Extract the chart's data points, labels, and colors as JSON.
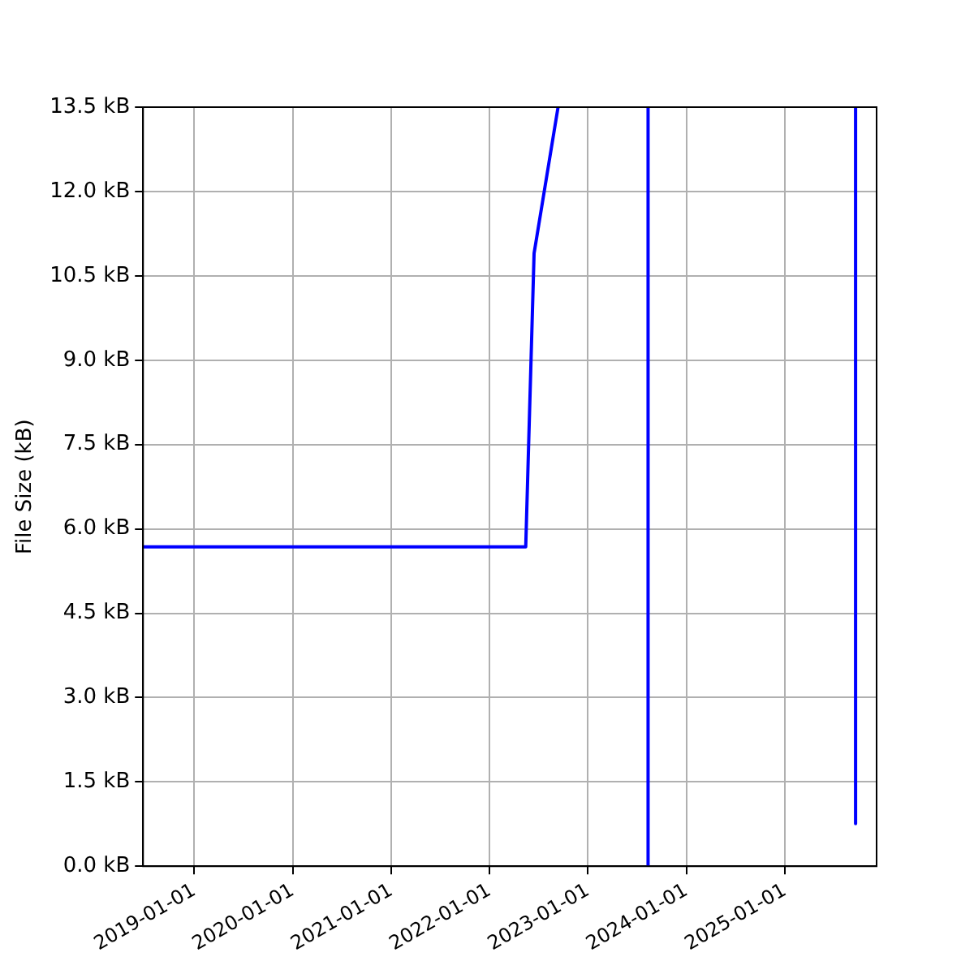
{
  "chart_data": {
    "type": "line",
    "ylabel": "File Size (kB)",
    "x": [
      "2018-06-25",
      "2022-05-15",
      "2022-06-15",
      "2022-09-12",
      "2023-01-01",
      "2023-08-12",
      "2023-08-12",
      "2024-09-01",
      "2025-09-20",
      "2025-09-20"
    ],
    "series": [
      {
        "color": "#0000ff",
        "values": [
          5.68,
          5.68,
          10.9,
          13.5,
          null,
          13.5,
          0,
          null,
          13.5,
          0.76
        ]
      }
    ],
    "xlim": [
      "2018-06-25",
      "2025-12-07"
    ],
    "xticks": [
      "2019-01-01",
      "2020-01-01",
      "2021-01-01",
      "2022-01-01",
      "2023-01-01",
      "2024-01-01",
      "2025-01-01"
    ],
    "ylim": [
      0,
      13.5
    ],
    "yticks": [
      {
        "value": 0,
        "label": "0.0 kB"
      },
      {
        "value": 1.5,
        "label": "1.5 kB"
      },
      {
        "value": 3,
        "label": "3.0 kB"
      },
      {
        "value": 4.5,
        "label": "4.5 kB"
      },
      {
        "value": 6,
        "label": "6.0 kB"
      },
      {
        "value": 7.5,
        "label": "7.5 kB"
      },
      {
        "value": 9,
        "label": "9.0 kB"
      },
      {
        "value": 10.5,
        "label": "10.5 kB"
      },
      {
        "value": 12,
        "label": "12.0 kB"
      },
      {
        "value": 13.5,
        "label": "13.5 kB"
      }
    ],
    "grid": true,
    "marker": "none",
    "line_style": "solid",
    "legend": false
  }
}
